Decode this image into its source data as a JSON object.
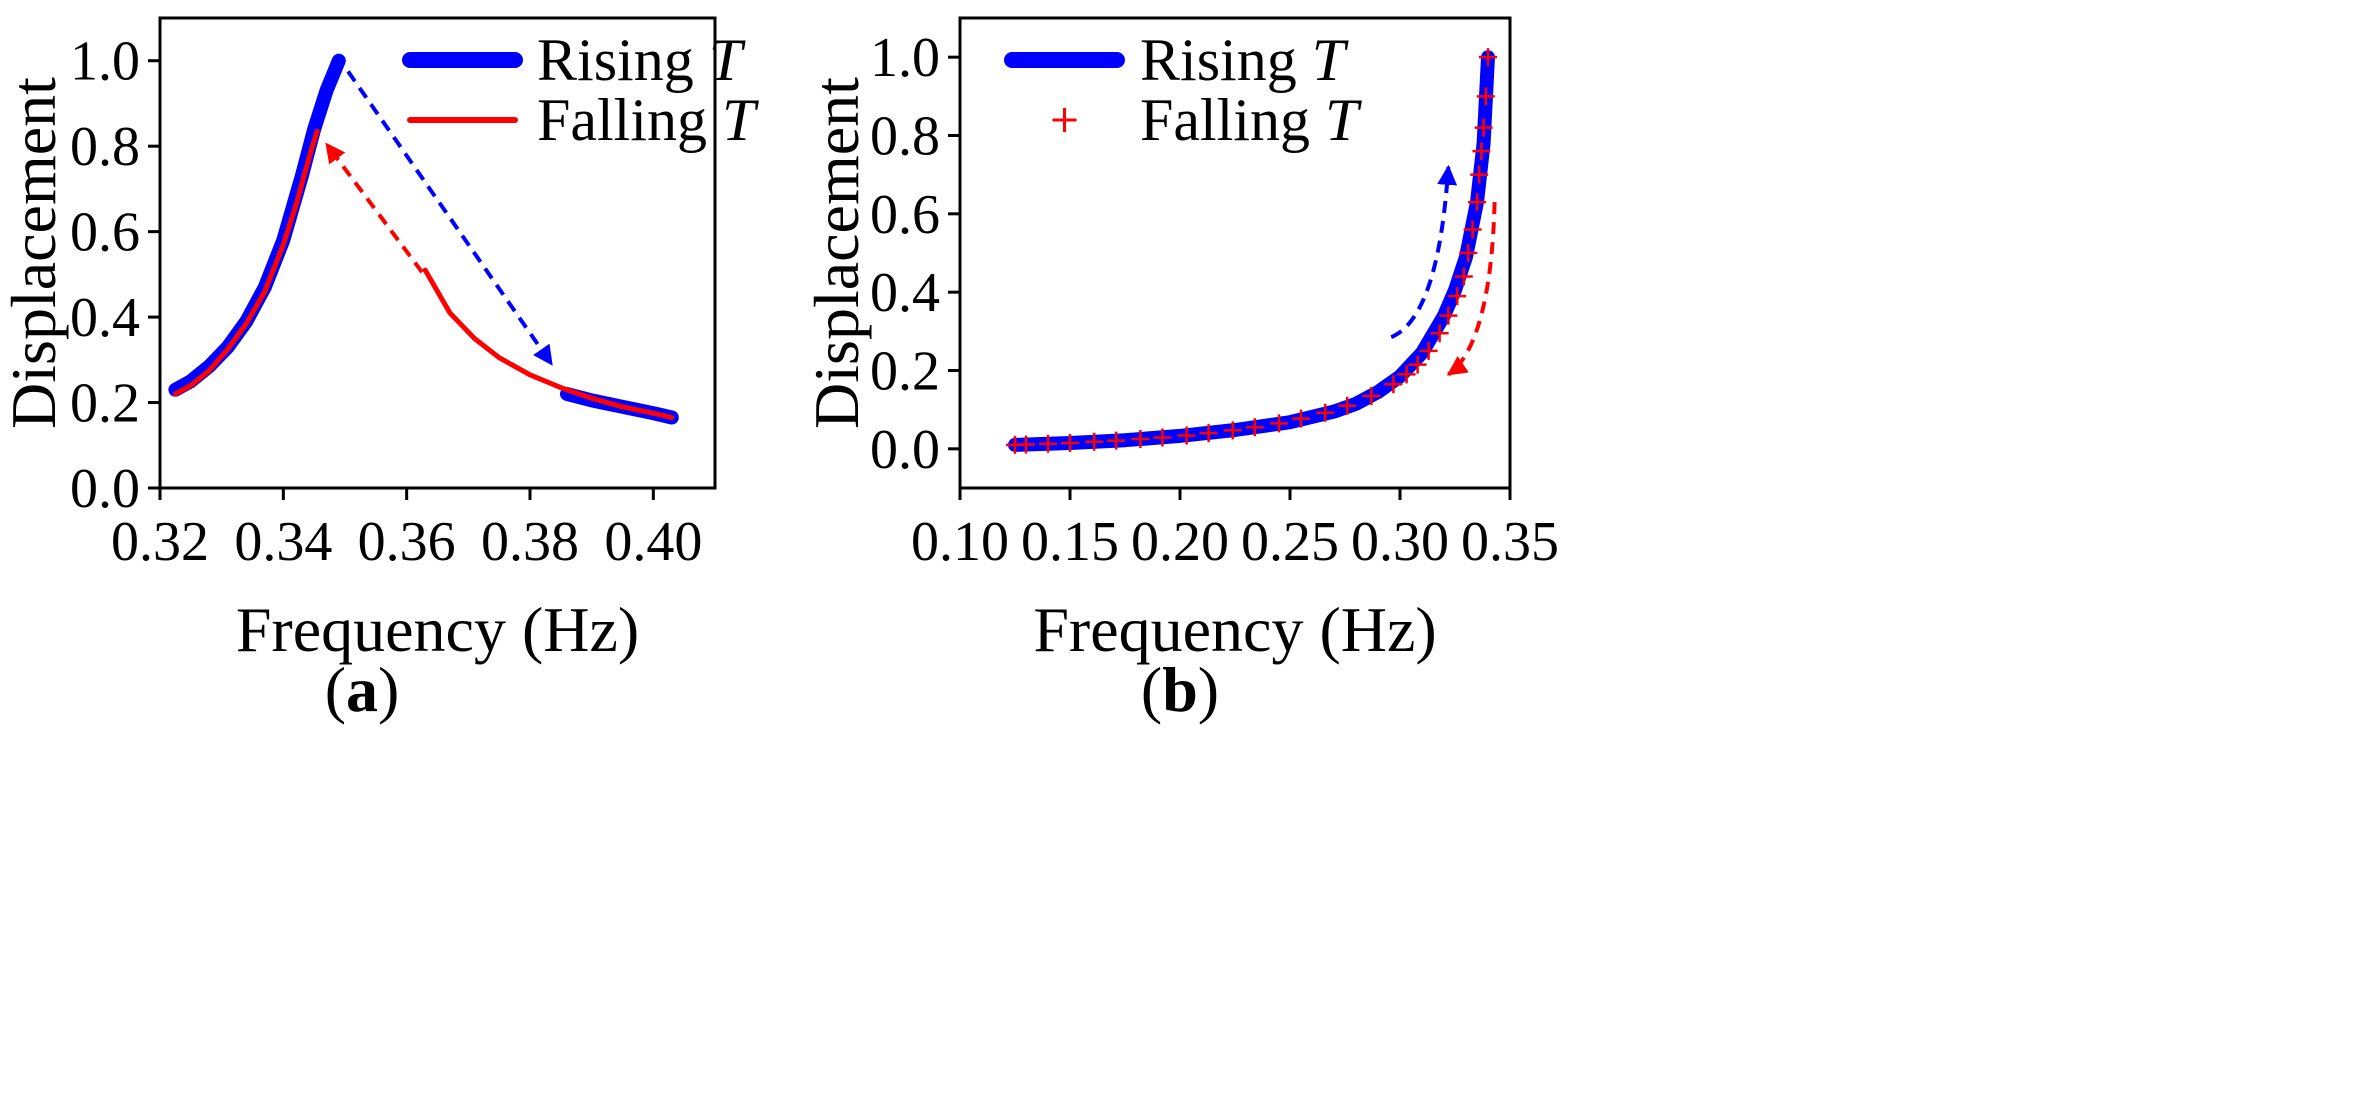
{
  "chart_data": [
    {
      "panel": "(a)",
      "panel_letter": "a",
      "type": "line",
      "title": "",
      "xlabel": "Frequency (Hz)",
      "ylabel": "Displacement",
      "xlim": [
        0.32,
        0.41
      ],
      "ylim": [
        0.0,
        1.1
      ],
      "xticks": [
        0.32,
        0.34,
        0.36,
        0.38,
        0.4
      ],
      "xtick_labels": [
        "0.32",
        "0.34",
        "0.36",
        "0.38",
        "0.40"
      ],
      "yticks": [
        0.0,
        0.2,
        0.4,
        0.6,
        0.8,
        1.0
      ],
      "ytick_labels": [
        "0.0",
        "0.2",
        "0.4",
        "0.6",
        "0.8",
        "1.0"
      ],
      "grid": false,
      "legend_position": "top-right",
      "series": [
        {
          "name": "Rising T",
          "name_text": "Rising",
          "name_italic": "T",
          "color": "#0000ff",
          "style": "thick-line",
          "segments": [
            {
              "x": [
                0.3225,
                0.325,
                0.328,
                0.331,
                0.334,
                0.337,
                0.34,
                0.343,
                0.345,
                0.347,
                0.349
              ],
              "y": [
                0.23,
                0.25,
                0.285,
                0.33,
                0.39,
                0.47,
                0.58,
                0.73,
                0.84,
                0.93,
                1.0
              ]
            },
            {
              "x": [
                0.386,
                0.39,
                0.395,
                0.4,
                0.403
              ],
              "y": [
                0.22,
                0.205,
                0.19,
                0.175,
                0.165
              ]
            }
          ]
        },
        {
          "name": "Falling T",
          "name_text": "Falling",
          "name_italic": "T",
          "color": "#ff0000",
          "style": "line",
          "segments": [
            {
              "x": [
                0.3225,
                0.325,
                0.328,
                0.331,
                0.334,
                0.337,
                0.34,
                0.342,
                0.3445,
                0.3455
              ],
              "y": [
                0.22,
                0.24,
                0.275,
                0.325,
                0.385,
                0.46,
                0.57,
                0.66,
                0.79,
                0.835
              ]
            },
            {
              "x": [
                0.363,
                0.367,
                0.371,
                0.375,
                0.38,
                0.385,
                0.39,
                0.395,
                0.4,
                0.403
              ],
              "y": [
                0.51,
                0.41,
                0.35,
                0.305,
                0.265,
                0.235,
                0.21,
                0.19,
                0.175,
                0.165
              ]
            }
          ]
        }
      ],
      "annotations": [
        {
          "type": "dashed-arrow",
          "color": "#0000ff",
          "from": [
            0.3505,
            0.975
          ],
          "to": [
            0.3835,
            0.29
          ]
        },
        {
          "type": "dashed-arrow",
          "color": "#ff0000",
          "from": [
            0.3625,
            0.505
          ],
          "to": [
            0.347,
            0.805
          ]
        }
      ]
    },
    {
      "panel": "(b)",
      "panel_letter": "b",
      "type": "line",
      "title": "",
      "xlabel": "Frequency (Hz)",
      "ylabel": "Displacement",
      "xlim": [
        0.1,
        0.35
      ],
      "ylim": [
        -0.1,
        1.1
      ],
      "xticks": [
        0.1,
        0.15,
        0.2,
        0.25,
        0.3,
        0.35
      ],
      "xtick_labels": [
        "0.10",
        "0.15",
        "0.20",
        "0.25",
        "0.30",
        "0.35"
      ],
      "yticks": [
        0.0,
        0.2,
        0.4,
        0.6,
        0.8,
        1.0
      ],
      "ytick_labels": [
        "0.0",
        "0.2",
        "0.4",
        "0.6",
        "0.8",
        "1.0"
      ],
      "grid": false,
      "legend_position": "top-left",
      "series": [
        {
          "name": "Rising T",
          "name_text": "Rising",
          "name_italic": "T",
          "color": "#0000ff",
          "style": "thick-line",
          "segments": [
            {
              "x": [
                0.125,
                0.15,
                0.175,
                0.2,
                0.225,
                0.25,
                0.27,
                0.28,
                0.29,
                0.3,
                0.31,
                0.32,
                0.325,
                0.33,
                0.335,
                0.338,
                0.34
              ],
              "y": [
                0.01,
                0.015,
                0.022,
                0.033,
                0.048,
                0.068,
                0.095,
                0.115,
                0.145,
                0.185,
                0.245,
                0.34,
                0.405,
                0.49,
                0.63,
                0.78,
                1.0
              ]
            }
          ]
        },
        {
          "name": "Falling T",
          "name_text": "Falling",
          "name_italic": "T",
          "color": "#ff0000",
          "style": "markers-plus",
          "points": {
            "x": [
              0.125,
              0.13,
              0.14,
              0.15,
              0.161,
              0.171,
              0.182,
              0.192,
              0.203,
              0.213,
              0.224,
              0.234,
              0.245,
              0.255,
              0.266,
              0.276,
              0.287,
              0.297,
              0.303,
              0.308,
              0.313,
              0.318,
              0.322,
              0.326,
              0.329,
              0.331,
              0.333,
              0.335,
              0.336,
              0.337,
              0.338,
              0.339,
              0.34
            ],
            "y": [
              0.01,
              0.011,
              0.013,
              0.015,
              0.018,
              0.021,
              0.025,
              0.029,
              0.034,
              0.04,
              0.047,
              0.055,
              0.065,
              0.077,
              0.092,
              0.11,
              0.135,
              0.165,
              0.19,
              0.215,
              0.25,
              0.295,
              0.34,
              0.39,
              0.44,
              0.5,
              0.56,
              0.63,
              0.7,
              0.76,
              0.82,
              0.9,
              1.0
            ]
          }
        }
      ],
      "annotations": [
        {
          "type": "curved-dashed-arrow",
          "color": "#0000ff",
          "path": [
            [
              0.296,
              0.285
            ],
            [
              0.315,
              0.33
            ],
            [
              0.32,
              0.56
            ],
            [
              0.322,
              0.72
            ]
          ]
        },
        {
          "type": "curved-dashed-arrow",
          "color": "#ff0000",
          "path": [
            [
              0.343,
              0.63
            ],
            [
              0.342,
              0.4
            ],
            [
              0.335,
              0.24
            ],
            [
              0.322,
              0.19
            ]
          ]
        }
      ]
    }
  ]
}
